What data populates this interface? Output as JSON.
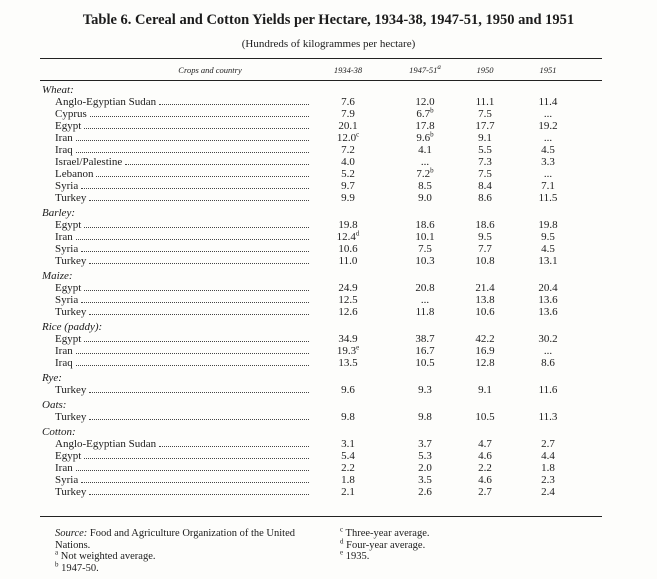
{
  "title": "Table 6. Cereal and Cotton Yields per Hectare, 1934-38, 1947-51, 1950 and 1951",
  "subtitle": "(Hundreds of kilogrammes per hectare)",
  "header": {
    "labels": [
      "Crops and country",
      "1934-38",
      "1947-51",
      "1950",
      "1951"
    ],
    "notes": {
      "2": "a"
    }
  },
  "groups": [
    {
      "label": "Wheat:",
      "rows": [
        {
          "country": "Anglo-Egyptian Sudan",
          "values": [
            "7.6",
            "12.0",
            "11.1",
            "11.4"
          ]
        },
        {
          "country": "Cyprus",
          "values": [
            "7.9",
            "6.7",
            "7.5",
            "..."
          ],
          "notes": {
            "1": "b"
          }
        },
        {
          "country": "Egypt",
          "values": [
            "20.1",
            "17.8",
            "17.7",
            "19.2"
          ]
        },
        {
          "country": "Iran",
          "values": [
            "12.0",
            "9.6",
            "9.1",
            "..."
          ],
          "notes": {
            "0": "c",
            "1": "b"
          }
        },
        {
          "country": "Iraq",
          "values": [
            "7.2",
            "4.1",
            "5.5",
            "4.5"
          ]
        },
        {
          "country": "Israel/Palestine",
          "values": [
            "4.0",
            "...",
            "7.3",
            "3.3"
          ]
        },
        {
          "country": "Lebanon",
          "values": [
            "5.2",
            "7.2",
            "7.5",
            "..."
          ],
          "notes": {
            "1": "b"
          }
        },
        {
          "country": "Syria",
          "values": [
            "9.7",
            "8.5",
            "8.4",
            "7.1"
          ]
        },
        {
          "country": "Turkey",
          "values": [
            "9.9",
            "9.0",
            "8.6",
            "11.5"
          ]
        }
      ]
    },
    {
      "label": "Barley:",
      "rows": [
        {
          "country": "Egypt",
          "values": [
            "19.8",
            "18.6",
            "18.6",
            "19.8"
          ]
        },
        {
          "country": "Iran",
          "values": [
            "12.4",
            "10.1",
            "9.5",
            "9.5"
          ],
          "notes": {
            "0": "d"
          }
        },
        {
          "country": "Syria",
          "values": [
            "10.6",
            "7.5",
            "7.7",
            "4.5"
          ]
        },
        {
          "country": "Turkey",
          "values": [
            "11.0",
            "10.3",
            "10.8",
            "13.1"
          ]
        }
      ]
    },
    {
      "label": "Maize:",
      "rows": [
        {
          "country": "Egypt",
          "values": [
            "24.9",
            "20.8",
            "21.4",
            "20.4"
          ]
        },
        {
          "country": "Syria",
          "values": [
            "12.5",
            "...",
            "13.8",
            "13.6"
          ]
        },
        {
          "country": "Turkey",
          "values": [
            "12.6",
            "11.8",
            "10.6",
            "13.6"
          ]
        }
      ]
    },
    {
      "label": "Rice (paddy):",
      "rows": [
        {
          "country": "Egypt",
          "values": [
            "34.9",
            "38.7",
            "42.2",
            "30.2"
          ]
        },
        {
          "country": "Iran",
          "values": [
            "19.3",
            "16.7",
            "16.9",
            "..."
          ],
          "notes": {
            "0": "e"
          }
        },
        {
          "country": "Iraq",
          "values": [
            "13.5",
            "10.5",
            "12.8",
            "8.6"
          ]
        }
      ]
    },
    {
      "label": "Rye:",
      "rows": [
        {
          "country": "Turkey",
          "values": [
            "9.6",
            "9.3",
            "9.1",
            "11.6"
          ]
        }
      ]
    },
    {
      "label": "Oats:",
      "rows": [
        {
          "country": "Turkey",
          "values": [
            "9.8",
            "9.8",
            "10.5",
            "11.3"
          ]
        }
      ]
    },
    {
      "label": "Cotton:",
      "rows": [
        {
          "country": "Anglo-Egyptian Sudan",
          "values": [
            "3.1",
            "3.7",
            "4.7",
            "2.7"
          ]
        },
        {
          "country": "Egypt",
          "values": [
            "5.4",
            "5.3",
            "4.6",
            "4.4"
          ]
        },
        {
          "country": "Iran",
          "values": [
            "2.2",
            "2.0",
            "2.2",
            "1.8"
          ]
        },
        {
          "country": "Syria",
          "values": [
            "1.8",
            "3.5",
            "4.6",
            "2.3"
          ]
        },
        {
          "country": "Turkey",
          "values": [
            "2.1",
            "2.6",
            "2.7",
            "2.4"
          ]
        }
      ]
    }
  ],
  "source": {
    "label": "Source:",
    "text": "Food and Agriculture Organization of the United Nations."
  },
  "footnotes_left": [
    {
      "mark": "a",
      "text": "Not weighted average."
    },
    {
      "mark": "b",
      "text": "1947-50."
    }
  ],
  "footnotes_right": [
    {
      "mark": "c",
      "text": "Three-year average."
    },
    {
      "mark": "d",
      "text": "Four-year average."
    },
    {
      "mark": "e",
      "text": "1935."
    }
  ]
}
